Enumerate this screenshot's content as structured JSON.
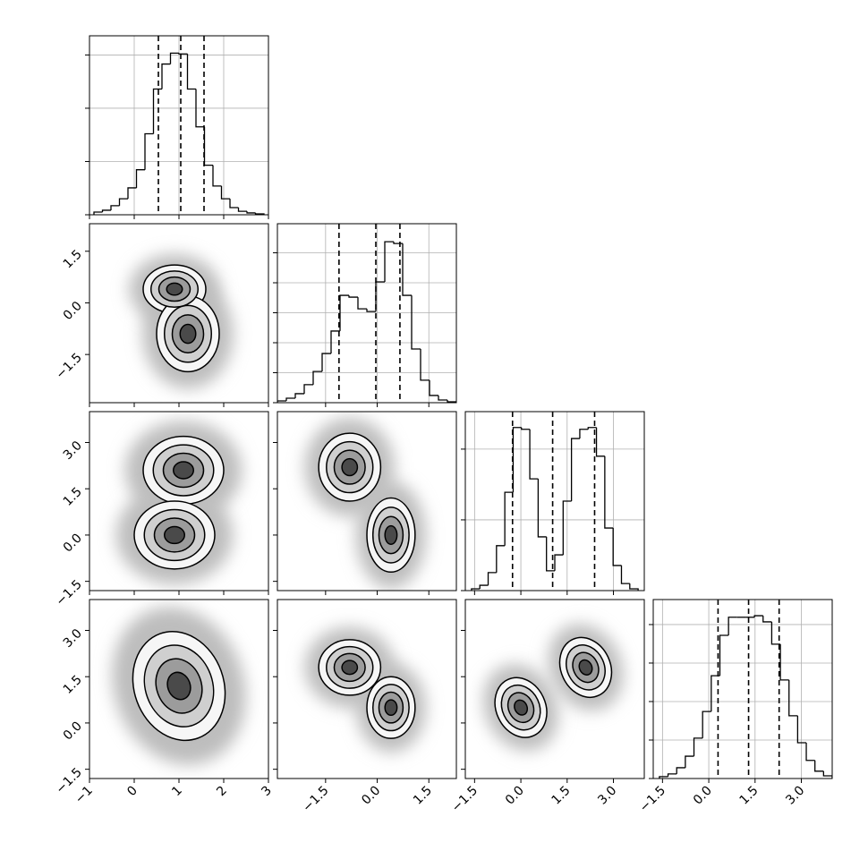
{
  "chart_data": [
    {
      "type": "histogram",
      "color": "#000000",
      "grid": true,
      "bins": [
        -0.9,
        -0.71,
        -0.52,
        -0.33,
        -0.14,
        0.05,
        0.24,
        0.43,
        0.62,
        0.81,
        1.0,
        1.19,
        1.38,
        1.57,
        1.76,
        1.95,
        2.14,
        2.33,
        2.52,
        2.71,
        2.9
      ],
      "counts": [
        50,
        85,
        170,
        300,
        505,
        845,
        1520,
        2360,
        2830,
        3035,
        3020,
        2360,
        1650,
        930,
        540,
        300,
        135,
        65,
        35,
        17
      ],
      "quantiles": [
        0.54,
        1.04,
        1.56
      ],
      "xlim": [
        -1,
        3
      ],
      "xticks": [
        -1,
        0,
        1,
        2,
        3
      ],
      "ylim": [
        0,
        3360
      ],
      "yticks": [
        0,
        1000,
        2000,
        3000
      ]
    },
    {
      "type": "contour",
      "levels": [
        0.5,
        1.0,
        1.5,
        2.0
      ],
      "modes": [
        {
          "x": 0.9,
          "y": 0.4,
          "sx": 0.35,
          "sy": 0.35
        },
        {
          "x": 1.2,
          "y": -0.9,
          "sx": 0.35,
          "sy": 0.55
        }
      ],
      "xlim": [
        -1,
        3
      ],
      "xticks": [
        -1,
        0,
        1,
        2,
        3
      ],
      "ylim": [
        -2.9,
        2.3
      ],
      "ylabels": true,
      "yticks": [
        {
          "value": -1.5,
          "label": "−1.5"
        },
        {
          "value": 0,
          "label": "0.0"
        },
        1.5
      ]
    },
    {
      "type": "histogram",
      "color": "#000000",
      "grid": true,
      "bins": [
        -2.9,
        -2.64,
        -2.38,
        -2.12,
        -1.86,
        -1.6,
        -1.34,
        -1.08,
        -0.82,
        -0.56,
        -0.3,
        -0.04,
        0.22,
        0.48,
        0.74,
        1.0,
        1.26,
        1.52,
        1.78,
        2.04,
        2.3
      ],
      "counts": [
        30,
        75,
        150,
        300,
        520,
        820,
        1195,
        1790,
        1760,
        1565,
        1520,
        2015,
        2685,
        2655,
        1790,
        895,
        375,
        120,
        45,
        15
      ],
      "quantiles": [
        -1.11,
        -0.04,
        0.66
      ],
      "xlim": [
        -2.9,
        2.3
      ],
      "xticks": [
        -1.5,
        0,
        1.5
      ],
      "ylim": [
        0,
        2985
      ],
      "yticks": [
        0,
        500,
        1000,
        1500,
        2000,
        2500
      ]
    },
    {
      "type": "contour",
      "levels": [
        0.5,
        1.0,
        1.5,
        2.0
      ],
      "modes": [
        {
          "x": 1.1,
          "y": 2.1,
          "sx": 0.45,
          "sy": 0.55
        },
        {
          "x": 0.9,
          "y": 0.0,
          "sx": 0.45,
          "sy": 0.55
        }
      ],
      "xlim": [
        -1,
        3
      ],
      "xticks": [
        -1,
        0,
        1,
        2,
        3
      ],
      "ylim": [
        -1.8,
        4.0
      ],
      "ylabels": true,
      "yticks": [
        {
          "value": -1.5,
          "label": "−1.5"
        },
        {
          "value": 0,
          "label": "0.0"
        },
        1.5,
        {
          "value": 3,
          "label": "3.0"
        }
      ]
    },
    {
      "type": "contour",
      "levels": [
        0.5,
        1.0,
        1.5,
        2.0
      ],
      "modes": [
        {
          "x": -0.8,
          "y": 2.2,
          "sx": 0.45,
          "sy": 0.55
        },
        {
          "x": 0.4,
          "y": 0.0,
          "sx": 0.35,
          "sy": 0.6
        }
      ],
      "xlim": [
        -2.9,
        2.3
      ],
      "xticks": [
        -1.5,
        0,
        1.5
      ],
      "ylim": [
        -1.8,
        4.0
      ],
      "yticks": [
        -1.5,
        0,
        1.5,
        3
      ]
    },
    {
      "type": "histogram",
      "color": "#000000",
      "grid": true,
      "bins": [
        -1.6,
        -1.33,
        -1.06,
        -0.79,
        -0.52,
        -0.25,
        0.02,
        0.29,
        0.56,
        0.83,
        1.1,
        1.37,
        1.64,
        1.91,
        2.18,
        2.45,
        2.72,
        2.99,
        3.26,
        3.53,
        3.8
      ],
      "counts": [
        25,
        75,
        255,
        635,
        1390,
        2305,
        2280,
        1580,
        760,
        280,
        505,
        1265,
        2150,
        2280,
        2305,
        1900,
        885,
        355,
        100,
        25
      ],
      "quantiles": [
        -0.27,
        1.03,
        2.39
      ],
      "xlim": [
        -1.8,
        4.0
      ],
      "xticks": [
        -1.5,
        0,
        1.5,
        3
      ],
      "ylim": [
        0,
        2530
      ],
      "yticks": [
        0,
        1000,
        2000
      ]
    },
    {
      "type": "contour",
      "levels": [
        0.5,
        1.0,
        1.5,
        2.0
      ],
      "modes": [
        {
          "x": 1.0,
          "y": 1.2,
          "sx": 0.5,
          "sy": 0.9,
          "angle": -20
        }
      ],
      "xlim": [
        -1,
        3
      ],
      "xlabels": true,
      "xticks": [
        {
          "value": -1,
          "label": "−1"
        },
        0,
        1,
        2,
        3
      ],
      "ylim": [
        -1.8,
        4.0
      ],
      "ylabels": true,
      "yticks": [
        {
          "value": -1.5,
          "label": "−1.5"
        },
        {
          "value": 0,
          "label": "0.0"
        },
        1.5,
        {
          "value": 3,
          "label": "3.0"
        }
      ]
    },
    {
      "type": "contour",
      "levels": [
        0.5,
        1.0,
        1.5,
        2.0
      ],
      "modes": [
        {
          "x": -0.8,
          "y": 1.8,
          "sx": 0.45,
          "sy": 0.45
        },
        {
          "x": 0.4,
          "y": 0.5,
          "sx": 0.35,
          "sy": 0.5
        }
      ],
      "xlim": [
        -2.9,
        2.3
      ],
      "xlabels": true,
      "xticks": [
        {
          "value": -1.5,
          "label": "−1.5"
        },
        {
          "value": 0,
          "label": "0.0"
        },
        1.5
      ],
      "ylim": [
        -1.8,
        4.0
      ],
      "yticks": [
        -1.5,
        0,
        1.5,
        3
      ]
    },
    {
      "type": "contour",
      "levels": [
        0.5,
        1.0,
        1.5,
        2.0
      ],
      "modes": [
        {
          "x": 0.0,
          "y": 0.5,
          "sx": 0.4,
          "sy": 0.5,
          "angle": -25
        },
        {
          "x": 2.1,
          "y": 1.8,
          "sx": 0.4,
          "sy": 0.5,
          "angle": -25
        }
      ],
      "xlim": [
        -1.8,
        4.0
      ],
      "xlabels": true,
      "xticks": [
        {
          "value": -1.5,
          "label": "−1.5"
        },
        {
          "value": 0,
          "label": "0.0"
        },
        1.5,
        {
          "value": 3,
          "label": "3.0"
        }
      ],
      "ylim": [
        -1.8,
        4.0
      ],
      "yticks": [
        -1.5,
        0,
        1.5,
        3
      ]
    },
    {
      "type": "histogram",
      "color": "#000000",
      "grid": true,
      "bins": [
        -1.6,
        -1.32,
        -1.04,
        -0.76,
        -0.48,
        -0.2,
        0.08,
        0.36,
        0.64,
        0.92,
        1.2,
        1.48,
        1.76,
        2.04,
        2.32,
        2.6,
        2.88,
        3.16,
        3.44,
        3.72,
        4.0
      ],
      "counts": [
        25,
        60,
        140,
        290,
        525,
        870,
        1335,
        1860,
        2095,
        2095,
        2095,
        2115,
        2035,
        1745,
        1280,
        815,
        465,
        235,
        95,
        35
      ],
      "quantiles": [
        0.3,
        1.29,
        2.28
      ],
      "xlim": [
        -1.8,
        4.0
      ],
      "xlabels": true,
      "xticks": [
        {
          "value": -1.5,
          "label": "−1.5"
        },
        {
          "value": 0,
          "label": "0.0"
        },
        1.5,
        {
          "value": 3,
          "label": "3.0"
        }
      ],
      "ylim": [
        0,
        2325
      ],
      "yticks": [
        0,
        500,
        1000,
        1500,
        2000
      ]
    }
  ]
}
